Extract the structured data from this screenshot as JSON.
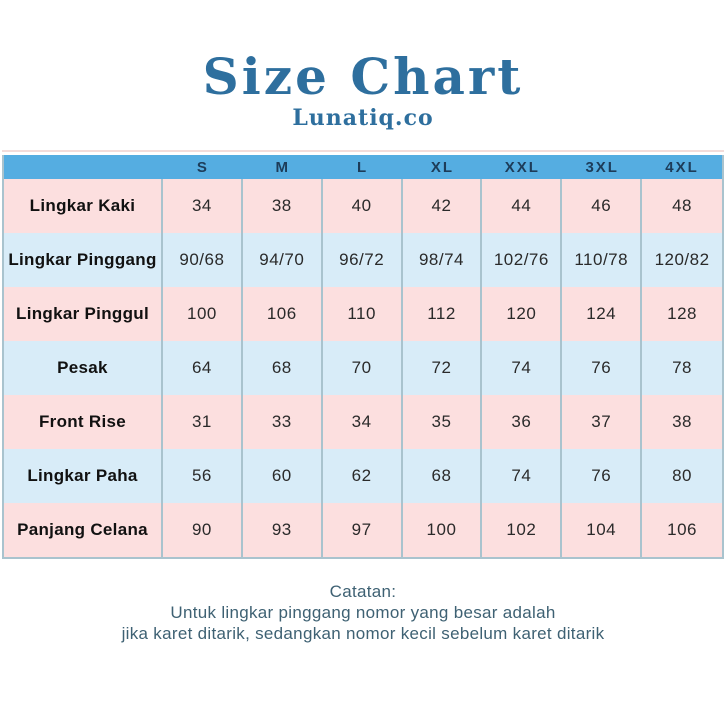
{
  "header": {
    "title": "Size Chart",
    "subtitle": "Lunatiq.co"
  },
  "colors": {
    "title_text": "#2e6f9e",
    "table_header_bg": "#55ade1",
    "table_header_text": "#1d3c59",
    "row_pink": "#fcdfdf",
    "row_blue": "#d8ecf8",
    "column_border": "#a9c3ce",
    "cell_text": "#2a2a2a",
    "footer_text": "#3e6173"
  },
  "chart_data": {
    "type": "table",
    "title": "Size Chart",
    "subtitle": "Lunatiq.co",
    "columns": [
      "",
      "S",
      "M",
      "L",
      "XL",
      "XXL",
      "3XL",
      "4XL"
    ],
    "rows": [
      {
        "label": "Lingkar Kaki",
        "values": [
          "34",
          "38",
          "40",
          "42",
          "44",
          "46",
          "48"
        ]
      },
      {
        "label": "Lingkar Pinggang",
        "values": [
          "90/68",
          "94/70",
          "96/72",
          "98/74",
          "102/76",
          "110/78",
          "120/82"
        ]
      },
      {
        "label": "Lingkar Pinggul",
        "values": [
          "100",
          "106",
          "110",
          "112",
          "120",
          "124",
          "128"
        ]
      },
      {
        "label": "Pesak",
        "values": [
          "64",
          "68",
          "70",
          "72",
          "74",
          "76",
          "78"
        ]
      },
      {
        "label": "Front Rise",
        "values": [
          "31",
          "33",
          "34",
          "35",
          "36",
          "37",
          "38"
        ]
      },
      {
        "label": "Lingkar Paha",
        "values": [
          "56",
          "60",
          "62",
          "68",
          "74",
          "76",
          "80"
        ]
      },
      {
        "label": "Panjang Celana",
        "values": [
          "90",
          "93",
          "97",
          "100",
          "102",
          "104",
          "106"
        ]
      }
    ],
    "layout_hints": {
      "row_colors_alternate": [
        "pink",
        "blue"
      ],
      "header_row_bg": "#55ade1",
      "grid": "vertical-only"
    }
  },
  "footer": {
    "heading": "Catatan:",
    "line1": "Untuk lingkar pinggang nomor yang besar adalah",
    "line2": "jika karet ditarik, sedangkan nomor kecil sebelum karet ditarik"
  }
}
